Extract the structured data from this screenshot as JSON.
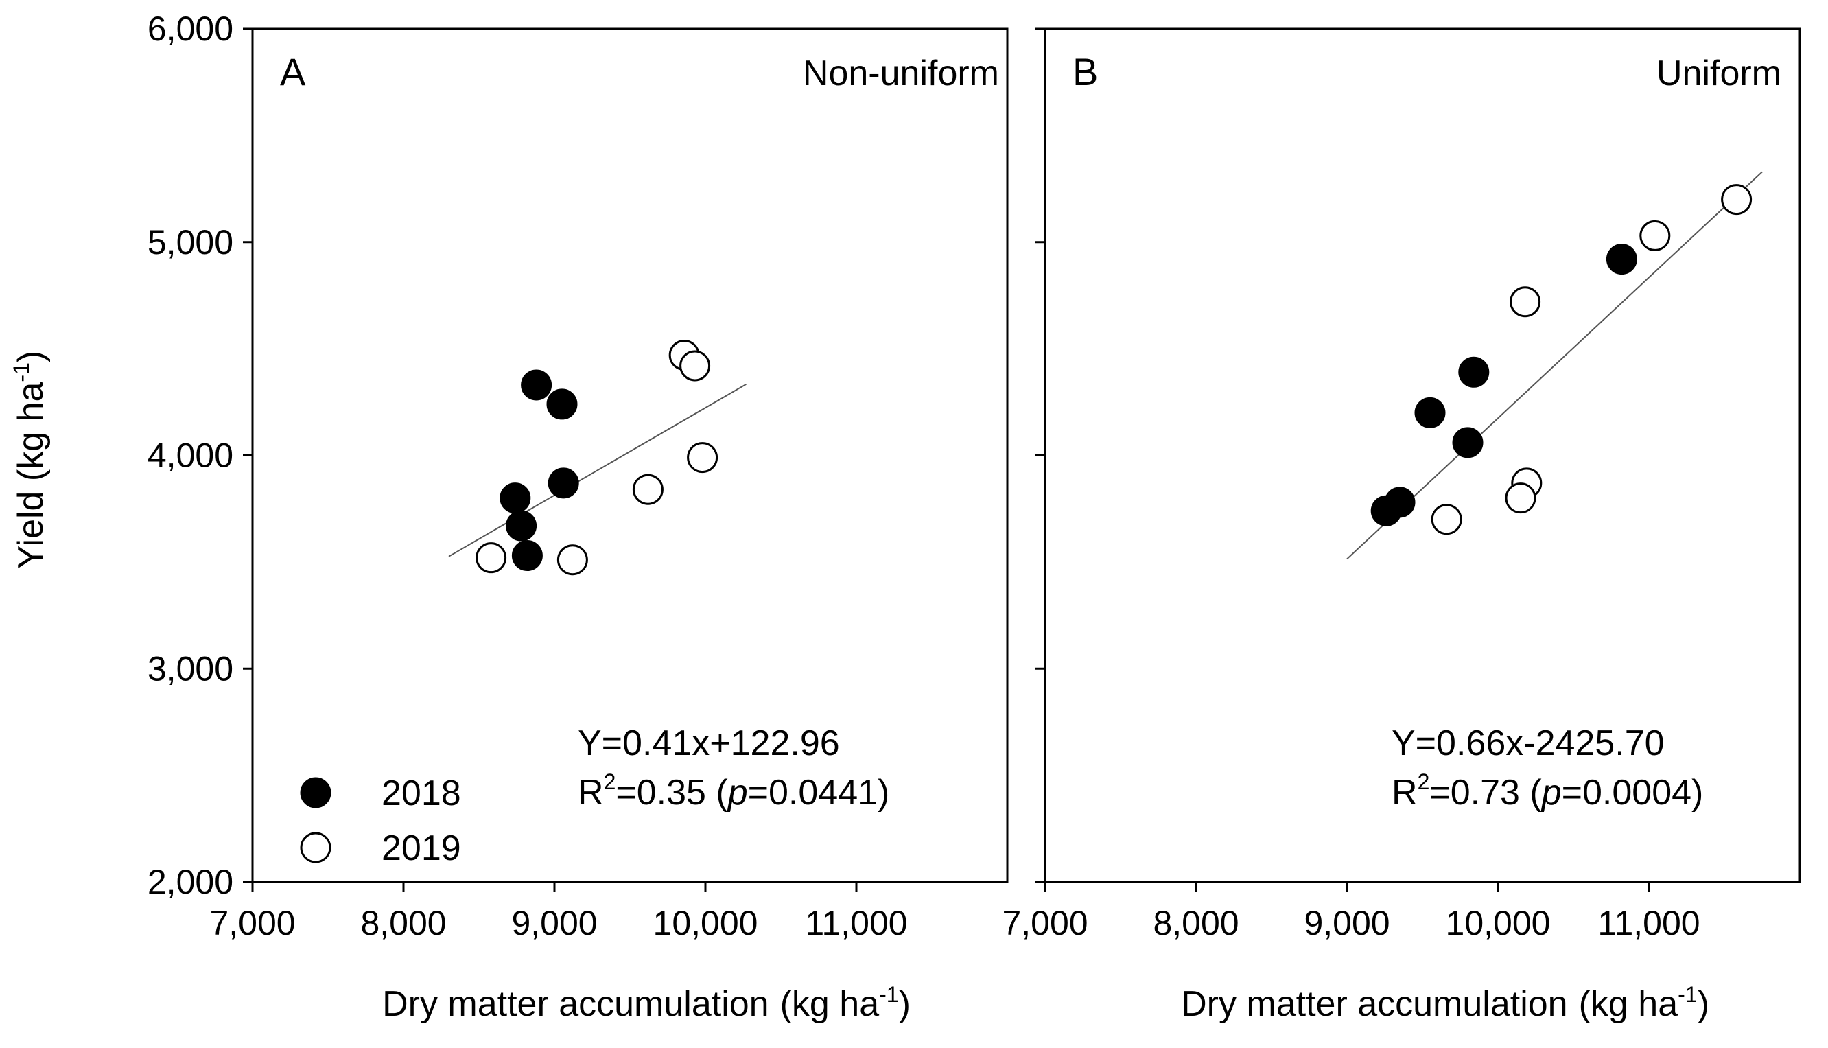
{
  "figure": {
    "y_axis_title": "Yield (kg ha",
    "y_axis_title_sup": "-1",
    "y_axis_title_close": ")",
    "y_tick_labels": [
      "2,000",
      "3,000",
      "4,000",
      "5,000",
      "6,000"
    ]
  },
  "chart_data": [
    {
      "type": "scatter",
      "panel_letter": "A",
      "title": "Non-uniform",
      "xlabel": "Dry matter accumulation",
      "xlabel_units": "(kg ha",
      "xlabel_units_sup": "-1",
      "xlabel_units_close": ")",
      "ylabel": "Yield (kg ha-1)",
      "xlim": [
        7000,
        12000
      ],
      "ylim": [
        2000,
        6000
      ],
      "x_ticks": [
        7000,
        8000,
        9000,
        10000,
        11000
      ],
      "x_tick_labels": [
        "7,000",
        "8,000",
        "9,000",
        "10,000",
        "11,000"
      ],
      "y_ticks": [
        2000,
        3000,
        4000,
        5000,
        6000
      ],
      "series": [
        {
          "name": "2018",
          "marker": "filled",
          "points": [
            [
              8880,
              4330
            ],
            [
              9050,
              4240
            ],
            [
              9060,
              3870
            ],
            [
              8740,
              3800
            ],
            [
              8780,
              3670
            ],
            [
              8820,
              3530
            ]
          ]
        },
        {
          "name": "2019",
          "marker": "open",
          "points": [
            [
              9860,
              4470
            ],
            [
              9930,
              4420
            ],
            [
              9980,
              3990
            ],
            [
              9620,
              3840
            ],
            [
              8580,
              3520
            ],
            [
              9120,
              3510
            ]
          ]
        }
      ],
      "fit": {
        "slope": 0.41,
        "intercept": 122.96,
        "x_range": [
          8300,
          10270
        ]
      },
      "annotation": {
        "equation": "Y=0.41x+122.96",
        "r2_prefix": "R",
        "r2_sup": "2",
        "r2_value": "=0.35 (",
        "p_label": "p",
        "p_value": "=0.0441)"
      },
      "legend": {
        "placement": "bottom-left",
        "items": [
          {
            "label": "2018",
            "marker": "filled"
          },
          {
            "label": "2019",
            "marker": "open"
          }
        ]
      }
    },
    {
      "type": "scatter",
      "panel_letter": "B",
      "title": "Uniform",
      "xlabel": "Dry matter accumulation",
      "xlabel_units": "(kg ha",
      "xlabel_units_sup": "-1",
      "xlabel_units_close": ")",
      "ylabel": "Yield (kg ha-1)",
      "xlim": [
        7000,
        12000
      ],
      "ylim": [
        2000,
        6000
      ],
      "x_ticks": [
        7000,
        8000,
        9000,
        10000,
        11000
      ],
      "x_tick_labels": [
        "7,000",
        "8,000",
        "9,000",
        "10,000",
        "11,000"
      ],
      "y_ticks": [
        2000,
        3000,
        4000,
        5000,
        6000
      ],
      "series": [
        {
          "name": "2018",
          "marker": "filled",
          "points": [
            [
              10820,
              4920
            ],
            [
              9840,
              4390
            ],
            [
              9550,
              4200
            ],
            [
              9800,
              4060
            ],
            [
              9350,
              3780
            ],
            [
              9260,
              3740
            ]
          ]
        },
        {
          "name": "2019",
          "marker": "open",
          "points": [
            [
              11580,
              5200
            ],
            [
              11040,
              5030
            ],
            [
              10180,
              4720
            ],
            [
              10190,
              3870
            ],
            [
              10150,
              3800
            ],
            [
              9660,
              3700
            ]
          ]
        }
      ],
      "fit": {
        "slope": 0.66,
        "intercept": -2425.7,
        "x_range": [
          9000,
          11750
        ]
      },
      "annotation": {
        "equation": "Y=0.66x-2425.70",
        "r2_prefix": "R",
        "r2_sup": "2",
        "r2_value": "=0.73 (",
        "p_label": "p",
        "p_value": "=0.0004)"
      }
    }
  ]
}
